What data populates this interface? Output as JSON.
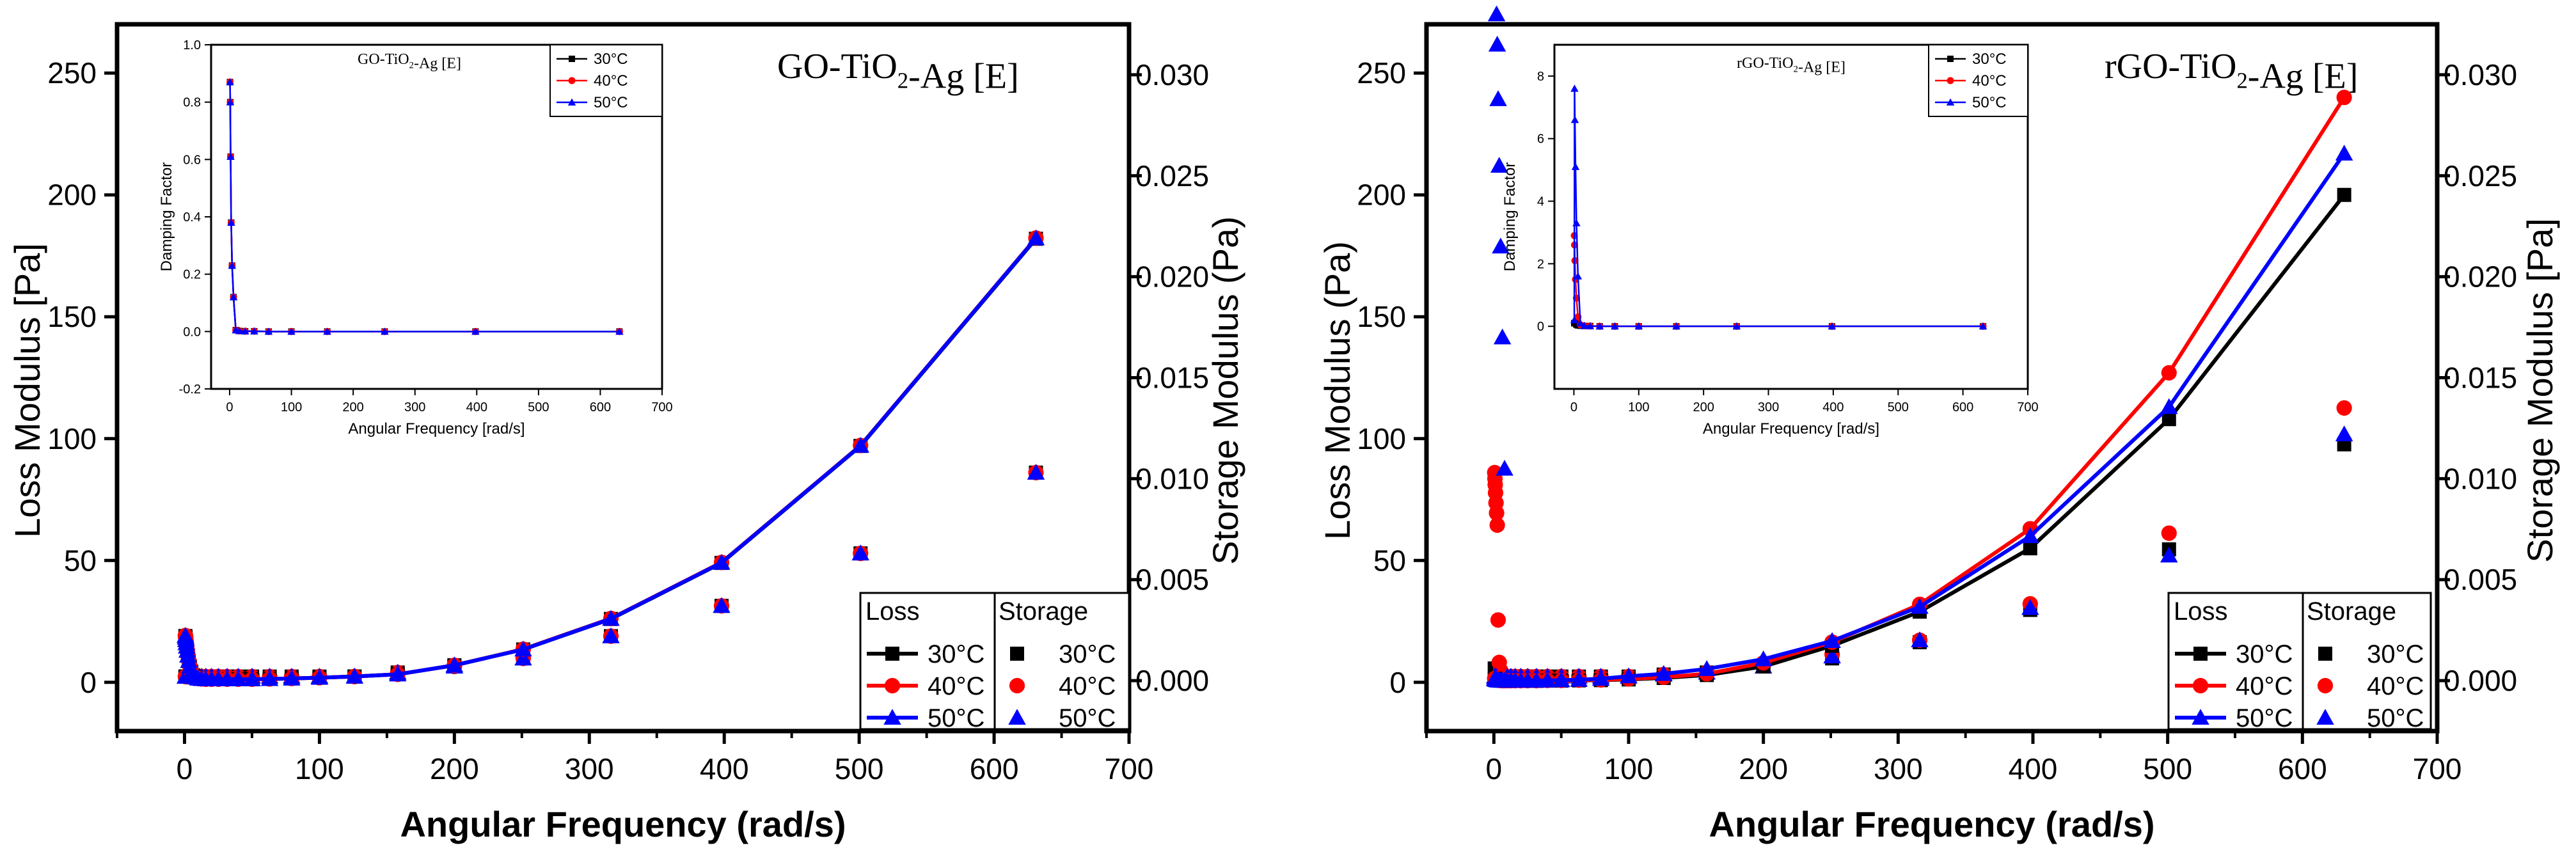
{
  "colors": {
    "t30": "#000000",
    "t40": "#ff0000",
    "t50": "#0000ff"
  },
  "chart_data": [
    {
      "type": "line",
      "panel": "left",
      "title": "GO-TiO2-Ag [E]",
      "xlabel": "Angular Frequency (rad/s)",
      "ylabel_left": "Loss Modulus [Pa]",
      "ylabel_right": "Storage Modulus (Pa)",
      "xlim": [
        -50,
        700
      ],
      "ylim_left": [
        -20,
        270
      ],
      "ylim_right": [
        -0.0025,
        0.0325
      ],
      "xticks": [
        "0",
        "100",
        "200",
        "300",
        "400",
        "500",
        "600",
        "700"
      ],
      "yticks_left": [
        "0",
        "50",
        "100",
        "150",
        "200",
        "250"
      ],
      "yticks_right": [
        "0.000",
        "0.005",
        "0.010",
        "0.015",
        "0.020",
        "0.025",
        "0.030"
      ],
      "legend": {
        "loss_header": "Loss",
        "storage_header": "Storage",
        "labels": [
          "30°C",
          "40°C",
          "50°C"
        ],
        "placement": "bottom-right"
      },
      "x": [
        0.63,
        0.79,
        1.0,
        1.26,
        1.58,
        2.0,
        2.51,
        3.16,
        3.98,
        5.01,
        6.31,
        7.94,
        10.0,
        12.6,
        15.8,
        20.0,
        25.1,
        31.6,
        39.8,
        50.1,
        63.1,
        79.4,
        100,
        126,
        158,
        200,
        251,
        316,
        398,
        501,
        631
      ],
      "loss_series": [
        {
          "name": "30°C",
          "values": [
            19.0,
            18.3,
            17.3,
            16.1,
            14.7,
            13.0,
            11.0,
            8.8,
            6.5,
            4.4,
            2.9,
            2.0,
            1.6,
            1.4,
            1.3,
            1.3,
            1.3,
            1.3,
            1.3,
            1.3,
            1.4,
            1.6,
            1.9,
            2.4,
            3.3,
            7.0,
            13.5,
            26.0,
            49.0,
            97.0,
            182.0
          ]
        },
        {
          "name": "40°C",
          "values": [
            19.2,
            18.5,
            17.5,
            16.2,
            14.8,
            13.1,
            11.1,
            8.9,
            6.6,
            4.5,
            3.0,
            2.0,
            1.6,
            1.4,
            1.3,
            1.3,
            1.3,
            1.3,
            1.3,
            1.3,
            1.4,
            1.6,
            1.9,
            2.4,
            3.3,
            7.0,
            13.6,
            26.2,
            49.2,
            97.2,
            182.3
          ]
        },
        {
          "name": "50°C",
          "values": [
            19.1,
            18.4,
            17.4,
            16.1,
            14.7,
            13.0,
            11.0,
            8.8,
            6.5,
            4.4,
            2.9,
            2.0,
            1.6,
            1.4,
            1.3,
            1.3,
            1.3,
            1.3,
            1.3,
            1.3,
            1.4,
            1.6,
            1.9,
            2.4,
            3.3,
            7.0,
            13.5,
            26.1,
            49.1,
            97.1,
            182.2
          ]
        }
      ],
      "storage_series": [
        {
          "name": "30°C",
          "values": [
            0.0002,
            0.0002,
            0.0002,
            0.0002,
            0.0002,
            0.0002,
            0.0002,
            0.0002,
            0.0002,
            0.0002,
            0.0002,
            0.0002,
            0.0002,
            0.0002,
            0.0002,
            0.0002,
            0.0002,
            0.0002,
            0.0002,
            0.0002,
            0.0002,
            0.0002,
            0.0002,
            0.0002,
            0.0004,
            0.0007,
            0.0011,
            0.0022,
            0.0037,
            0.0063,
            0.0103
          ]
        },
        {
          "name": "40°C",
          "values": [
            0.0002,
            0.0002,
            0.0002,
            0.0002,
            0.0002,
            0.0002,
            0.0002,
            0.0002,
            0.0002,
            0.0002,
            0.0002,
            0.0002,
            0.0002,
            0.0002,
            0.0002,
            0.0002,
            0.0002,
            0.0002,
            0.0002,
            0.0002,
            0.0002,
            0.0002,
            0.0002,
            0.0002,
            0.0004,
            0.0007,
            0.0011,
            0.0022,
            0.0037,
            0.0063,
            0.0103
          ]
        },
        {
          "name": "50°C",
          "values": [
            0.0002,
            0.0002,
            0.0002,
            0.0002,
            0.0002,
            0.0002,
            0.0002,
            0.0002,
            0.0002,
            0.0002,
            0.0002,
            0.0002,
            0.0002,
            0.0002,
            0.0002,
            0.0002,
            0.0002,
            0.0002,
            0.0002,
            0.0002,
            0.0002,
            0.0002,
            0.0002,
            0.0002,
            0.0004,
            0.0007,
            0.0011,
            0.0022,
            0.0037,
            0.0063,
            0.0103
          ]
        }
      ],
      "inset": {
        "title": "GO-TiO2-Ag [E]",
        "xlabel": "Angular Frequency [rad/s]",
        "ylabel": "Damping Factor",
        "xlim": [
          -30,
          700
        ],
        "ylim": [
          -0.2,
          1.0
        ],
        "xticks": [
          "0",
          "100",
          "200",
          "300",
          "400",
          "500",
          "600",
          "700"
        ],
        "yticks": [
          "-0.2",
          "0.0",
          "0.2",
          "0.4",
          "0.6",
          "0.8",
          "1.0"
        ],
        "legend": [
          "30°C",
          "40°C",
          "50°C"
        ],
        "x": [
          0.63,
          1.0,
          1.58,
          2.51,
          3.98,
          6.31,
          10.0,
          15.8,
          25.1,
          39.8,
          63.1,
          100,
          158,
          251,
          398,
          631
        ],
        "series": [
          {
            "name": "30°C",
            "values": [
              0.87,
              0.8,
              0.61,
              0.38,
              0.23,
              0.12,
              0.005,
              0.002,
              0.001,
              0.001,
              0.0,
              0.0,
              0.0,
              0.0,
              0.0,
              0.0
            ]
          },
          {
            "name": "40°C",
            "values": [
              0.87,
              0.8,
              0.61,
              0.38,
              0.23,
              0.12,
              0.005,
              0.002,
              0.001,
              0.001,
              0.0,
              0.0,
              0.0,
              0.0,
              0.0,
              0.0
            ]
          },
          {
            "name": "50°C",
            "values": [
              0.87,
              0.8,
              0.61,
              0.38,
              0.23,
              0.12,
              0.005,
              0.002,
              0.001,
              0.001,
              0.0,
              0.0,
              0.0,
              0.0,
              0.0,
              0.0
            ]
          }
        ]
      }
    },
    {
      "type": "line",
      "panel": "right",
      "title": "rGO-TiO2-Ag [E]",
      "xlabel": "Angular Frequency (rad/s)",
      "ylabel_left": "Loss Modulus (Pa)",
      "ylabel_right": "Storage Modulus [Pa]",
      "xlim": [
        -50,
        700
      ],
      "ylim_left": [
        -20,
        270
      ],
      "ylim_right": [
        -0.0025,
        0.0325
      ],
      "xticks": [
        "0",
        "100",
        "200",
        "300",
        "400",
        "500",
        "600",
        "700"
      ],
      "yticks_left": [
        "0",
        "50",
        "100",
        "150",
        "200",
        "250"
      ],
      "yticks_right": [
        "0.000",
        "0.005",
        "0.010",
        "0.015",
        "0.020",
        "0.025",
        "0.030"
      ],
      "legend": {
        "loss_header": "Loss",
        "storage_header": "Storage",
        "labels": [
          "30°C",
          "40°C",
          "50°C"
        ],
        "placement": "bottom-right"
      },
      "x": [
        0.63,
        0.79,
        1.0,
        1.26,
        1.58,
        2.0,
        2.51,
        3.16,
        3.98,
        5.01,
        6.31,
        7.94,
        10.0,
        12.6,
        15.8,
        20.0,
        25.1,
        31.6,
        39.8,
        50.1,
        63.1,
        79.4,
        100,
        126,
        158,
        200,
        251,
        316,
        398,
        501,
        631
      ],
      "loss_series": [
        {
          "name": "30°C",
          "values": [
            1.5,
            1.4,
            1.3,
            1.2,
            1.1,
            1.0,
            0.9,
            0.8,
            0.8,
            0.7,
            0.7,
            0.6,
            0.6,
            0.6,
            0.6,
            0.6,
            0.6,
            0.6,
            0.7,
            0.7,
            0.8,
            0.9,
            1.2,
            1.8,
            3.0,
            6.5,
            15.0,
            29.0,
            55.0,
            108.0,
            200.0
          ]
        },
        {
          "name": "40°C",
          "values": [
            1.6,
            1.5,
            1.4,
            1.3,
            1.2,
            1.1,
            1.0,
            0.9,
            0.8,
            0.8,
            0.7,
            0.7,
            0.7,
            0.7,
            0.7,
            0.7,
            0.7,
            0.7,
            0.8,
            0.8,
            0.9,
            1.0,
            1.4,
            2.1,
            3.5,
            8.0,
            16.5,
            32.0,
            63.0,
            127.0,
            240.0
          ]
        },
        {
          "name": "50°C",
          "values": [
            1.5,
            1.4,
            1.3,
            1.2,
            1.1,
            1.0,
            0.9,
            0.8,
            0.8,
            0.7,
            0.7,
            0.7,
            0.7,
            0.7,
            0.7,
            0.7,
            0.7,
            0.7,
            0.8,
            0.9,
            1.1,
            1.5,
            2.5,
            3.5,
            5.5,
            9.5,
            17.0,
            31.0,
            60.0,
            113.0,
            217.0
          ]
        }
      ],
      "storage_series": [
        {
          "name": "30°C",
          "values": [
            0.0006,
            0.0005,
            0.0004,
            0.0003,
            0.0002,
            0.0002,
            0.0002,
            0.0002,
            0.0002,
            0.0002,
            0.0002,
            0.0002,
            0.0002,
            0.0002,
            0.0002,
            0.0002,
            0.0002,
            0.0002,
            0.0002,
            0.0002,
            0.0002,
            0.0002,
            0.0002,
            0.0003,
            0.0004,
            0.0007,
            0.0011,
            0.0019,
            0.0035,
            0.0065,
            0.0117
          ]
        },
        {
          "name": "40°C",
          "values": [
            0.0103,
            0.01,
            0.0097,
            0.0093,
            0.0088,
            0.0083,
            0.0077,
            0.003,
            0.0009,
            0.0005,
            0.0003,
            0.0002,
            0.0002,
            0.0002,
            0.0002,
            0.0002,
            0.0002,
            0.0002,
            0.0002,
            0.0002,
            0.0002,
            0.0002,
            0.0002,
            0.0003,
            0.0004,
            0.0008,
            0.0013,
            0.002,
            0.0038,
            0.0073,
            0.0135
          ]
        },
        {
          "name": "50°C",
          "values": [
            0.0002,
            0.0002,
            0.0002,
            0.0002,
            0.0002,
            0.033,
            0.0315,
            0.0288,
            0.0255,
            0.0215,
            0.017,
            0.0105,
            0.0002,
            0.0002,
            0.0002,
            0.0002,
            0.0002,
            0.0002,
            0.0002,
            0.0002,
            0.0002,
            0.0002,
            0.0002,
            0.0003,
            0.0004,
            0.0007,
            0.0012,
            0.002,
            0.0036,
            0.0062,
            0.0122
          ]
        }
      ],
      "inset": {
        "title": "rGO-TiO2-Ag [E]",
        "xlabel": "Angular Frequency [rad/s]",
        "ylabel": "Damping Factor",
        "xlim": [
          -30,
          700
        ],
        "ylim": [
          -2,
          9
        ],
        "xticks": [
          "0",
          "100",
          "200",
          "300",
          "400",
          "500",
          "600",
          "700"
        ],
        "yticks": [
          "0",
          "2",
          "4",
          "6",
          "8"
        ],
        "legend": [
          "30°C",
          "40°C",
          "50°C"
        ],
        "x": [
          0.63,
          1.0,
          1.58,
          2.51,
          3.98,
          6.31,
          10.0,
          15.8,
          25.1,
          39.8,
          63.1,
          100,
          158,
          251,
          398,
          631
        ],
        "series": [
          {
            "name": "30°C",
            "values": [
              0.1,
              0.1,
              0.1,
              0.1,
              0.05,
              0.03,
              0.02,
              0.01,
              0.01,
              0.0,
              0.0,
              0.0,
              0.0,
              0.0,
              0.0,
              0.0
            ]
          },
          {
            "name": "40°C",
            "values": [
              2.9,
              2.6,
              2.1,
              1.5,
              0.9,
              0.3,
              0.05,
              0.02,
              0.01,
              0.0,
              0.0,
              0.0,
              0.0,
              0.0,
              0.0,
              0.0
            ]
          },
          {
            "name": "50°C",
            "values": [
              0.2,
              7.6,
              6.6,
              5.1,
              3.3,
              1.6,
              0.1,
              0.02,
              0.01,
              0.0,
              0.0,
              0.0,
              0.0,
              0.0,
              0.0,
              0.0
            ]
          }
        ]
      }
    }
  ]
}
